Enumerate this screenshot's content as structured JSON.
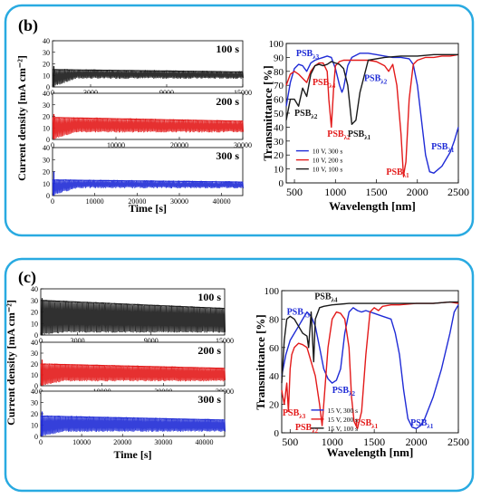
{
  "panels": [
    {
      "label": "(b)",
      "frame_color": "#29aae1",
      "current": {
        "ylabel": "Current density [mA cm⁻²]",
        "xlabel": "Time [s]",
        "ytick_labels": [
          "0",
          "10",
          "20",
          "30",
          "40"
        ],
        "subplots": [
          {
            "tag": "100 s",
            "color": "#1a1a1a",
            "xmax": 15000,
            "xticks": [
              0,
              3000,
              9000,
              15000
            ],
            "xtick_labels": [
              "0",
              "3000",
              "9000",
              "15000"
            ],
            "band": [
              7,
              15
            ],
            "peak": 18
          },
          {
            "tag": "200 s",
            "color": "#e31a1a",
            "xmax": 30000,
            "xticks": [
              0,
              10000,
              20000,
              30000
            ],
            "xtick_labels": [
              "0",
              "10000",
              "20000",
              "30000"
            ],
            "band": [
              6,
              19
            ],
            "peak": 22
          },
          {
            "tag": "300 s",
            "color": "#1f2bd6",
            "xmax": 45000,
            "xticks": [
              0,
              10000,
              20000,
              30000,
              40000
            ],
            "xtick_labels": [
              "0",
              "10000",
              "20000",
              "30000",
              "40000"
            ],
            "band": [
              6,
              13
            ],
            "peak": 20
          }
        ]
      },
      "transmittance": {
        "ylabel": "Transmittance [%]",
        "xlabel": "Wavelength [nm]",
        "xlim": [
          400,
          2500
        ],
        "ylim": [
          0,
          100
        ],
        "xticks": [
          500,
          1000,
          1500,
          2000,
          2500
        ],
        "yticks": [
          0,
          10,
          20,
          30,
          40,
          50,
          60,
          70,
          80,
          90,
          100
        ],
        "legend": [
          {
            "name": "10 V, 300 s",
            "color": "#1f2bd6"
          },
          {
            "name": "10 V, 200 s",
            "color": "#e31a1a"
          },
          {
            "name": "10 V, 100 s",
            "color": "#1a1a1a"
          }
        ],
        "series": [
          {
            "color": "#1f2bd6",
            "x": [
              400,
              450,
              500,
              550,
              600,
              650,
              700,
              750,
              800,
              850,
              900,
              950,
              1000,
              1050,
              1080,
              1100,
              1150,
              1200,
              1300,
              1400,
              1500,
              1600,
              1700,
              1800,
              1900,
              1950,
              2000,
              2050,
              2100,
              2150,
              2200,
              2300,
              2400,
              2450,
              2500
            ],
            "y": [
              55,
              72,
              82,
              85,
              84,
              80,
              86,
              88,
              89,
              90,
              91,
              90,
              82,
              70,
              65,
              68,
              84,
              90,
              93,
              93,
              92,
              91,
              90,
              90,
              89,
              85,
              70,
              45,
              20,
              8,
              7,
              12,
              22,
              30,
              40
            ]
          },
          {
            "color": "#e31a1a",
            "x": [
              400,
              450,
              500,
              550,
              600,
              650,
              700,
              750,
              800,
              850,
              900,
              920,
              950,
              980,
              1000,
              1050,
              1100,
              1200,
              1300,
              1400,
              1500,
              1600,
              1650,
              1700,
              1750,
              1800,
              1830,
              1860,
              1900,
              1950,
              2000,
              2100,
              2200,
              2300,
              2400,
              2500
            ],
            "y": [
              70,
              78,
              80,
              78,
              75,
              72,
              80,
              84,
              86,
              86,
              80,
              60,
              40,
              70,
              84,
              87,
              88,
              88,
              88,
              88,
              87,
              84,
              80,
              85,
              70,
              35,
              5,
              15,
              60,
              85,
              88,
              90,
              90,
              91,
              91,
              92
            ]
          },
          {
            "color": "#1a1a1a",
            "x": [
              400,
              450,
              500,
              550,
              600,
              650,
              700,
              750,
              800,
              850,
              900,
              950,
              1000,
              1050,
              1100,
              1150,
              1200,
              1250,
              1300,
              1400,
              1600,
              1800,
              2000,
              2200,
              2400,
              2500
            ],
            "y": [
              45,
              60,
              60,
              55,
              68,
              62,
              78,
              84,
              85,
              84,
              85,
              87,
              86,
              85,
              82,
              70,
              42,
              45,
              65,
              88,
              90,
              91,
              91,
              92,
              92,
              92
            ]
          }
        ],
        "annotations": [
          {
            "text": "PSB",
            "sub": "λ3",
            "color": "#1f2bd6",
            "x": 520,
            "y": 91
          },
          {
            "text": "PSB",
            "sub": "λ4",
            "color": "#e31a1a",
            "x": 720,
            "y": 70
          },
          {
            "text": "PSB",
            "sub": "λ2",
            "color": "#1a1a1a",
            "x": 500,
            "y": 48
          },
          {
            "text": "PSB",
            "sub": "λ2",
            "color": "#1f2bd6",
            "x": 1350,
            "y": 73
          },
          {
            "text": "PSB",
            "sub": "λ2",
            "color": "#e31a1a",
            "x": 900,
            "y": 33
          },
          {
            "text": "PSB",
            "sub": "λ1",
            "color": "#1a1a1a",
            "x": 1150,
            "y": 33
          },
          {
            "text": "PSB",
            "sub": "λ1",
            "color": "#e31a1a",
            "x": 1620,
            "y": 6
          },
          {
            "text": "PSB",
            "sub": "λ1",
            "color": "#1f2bd6",
            "x": 2170,
            "y": 24
          }
        ]
      }
    },
    {
      "label": "(c)",
      "frame_color": "#29aae1",
      "current": {
        "ylabel": "Current density [mA cm⁻²]",
        "xlabel": "Time [s]",
        "ytick_labels": [
          "0",
          "10",
          "20",
          "30",
          "40"
        ],
        "subplots": [
          {
            "tag": "100 s",
            "color": "#1a1a1a",
            "xmax": 15000,
            "xticks": [
              0,
              3000,
              9000,
              15000
            ],
            "xtick_labels": [
              "0",
              "3000",
              "9000",
              "15000"
            ],
            "band": [
              2,
              30
            ],
            "peak": 32
          },
          {
            "tag": "200 s",
            "color": "#e31a1a",
            "xmax": 30000,
            "xticks": [
              0,
              10000,
              20000,
              30000
            ],
            "xtick_labels": [
              "0",
              "10000",
              "20000",
              "30000"
            ],
            "band": [
              4,
              20
            ],
            "peak": 24
          },
          {
            "tag": "300 s",
            "color": "#1f2bd6",
            "xmax": 45000,
            "xticks": [
              0,
              10000,
              20000,
              30000,
              40000
            ],
            "xtick_labels": [
              "0",
              "10000",
              "20000",
              "30000",
              "40000"
            ],
            "band": [
              4,
              18
            ],
            "peak": 22
          }
        ]
      },
      "transmittance": {
        "ylabel": "Transmittance [%]",
        "xlabel": "Wavelength [nm]",
        "xlim": [
          400,
          2500
        ],
        "ylim": [
          0,
          100
        ],
        "xticks": [
          500,
          1000,
          1500,
          2000,
          2500
        ],
        "yticks": [
          0,
          20,
          40,
          60,
          80,
          100
        ],
        "legend": [
          {
            "name": "15 V, 300 s",
            "color": "#1f2bd6"
          },
          {
            "name": "15 V, 200 s",
            "color": "#e31a1a"
          },
          {
            "name": "15 V, 100 s",
            "color": "#1a1a1a"
          }
        ],
        "series": [
          {
            "color": "#1f2bd6",
            "x": [
              400,
              450,
              500,
              550,
              600,
              650,
              700,
              750,
              800,
              850,
              900,
              950,
              1000,
              1050,
              1100,
              1150,
              1200,
              1250,
              1300,
              1350,
              1400,
              1500,
              1600,
              1700,
              1750,
              1800,
              1850,
              1900,
              1950,
              2000,
              2050,
              2100,
              2200,
              2300,
              2400,
              2450,
              2500
            ],
            "y": [
              40,
              55,
              65,
              70,
              75,
              80,
              85,
              82,
              75,
              60,
              45,
              38,
              35,
              37,
              45,
              70,
              85,
              88,
              86,
              85,
              86,
              84,
              82,
              80,
              70,
              55,
              30,
              10,
              4,
              3,
              5,
              10,
              25,
              45,
              70,
              85,
              90
            ]
          },
          {
            "color": "#e31a1a",
            "x": [
              400,
              430,
              460,
              480,
              500,
              520,
              550,
              600,
              650,
              700,
              750,
              800,
              850,
              880,
              900,
              950,
              1000,
              1050,
              1100,
              1150,
              1200,
              1230,
              1260,
              1300,
              1350,
              1400,
              1450,
              1500,
              1550,
              1600,
              1700,
              1800,
              2000,
              2200,
              2400,
              2500
            ],
            "y": [
              30,
              20,
              35,
              15,
              45,
              55,
              60,
              63,
              62,
              60,
              50,
              40,
              20,
              5,
              20,
              60,
              80,
              85,
              84,
              80,
              60,
              25,
              8,
              3,
              15,
              55,
              85,
              88,
              86,
              89,
              90,
              90,
              91,
              91,
              92,
              91
            ]
          },
          {
            "color": "#1a1a1a",
            "x": [
              400,
              430,
              460,
              500,
              550,
              600,
              650,
              700,
              720,
              750,
              780,
              800,
              850,
              900,
              1000,
              1200,
              1400,
              1600,
              1800,
              2000,
              2200,
              2400,
              2500
            ],
            "y": [
              35,
              65,
              80,
              82,
              80,
              75,
              70,
              68,
              60,
              85,
              50,
              80,
              88,
              89,
              90,
              91,
              91,
              91,
              91,
              91,
              91,
              92,
              92
            ]
          }
        ],
        "annotations": [
          {
            "text": "PSB",
            "sub": "λ3",
            "color": "#1f2bd6",
            "x": 460,
            "y": 83
          },
          {
            "text": "PSB",
            "sub": "λ4",
            "color": "#1a1a1a",
            "x": 790,
            "y": 94
          },
          {
            "text": "PSB",
            "sub": "λ2",
            "color": "#1f2bd6",
            "x": 1000,
            "y": 28
          },
          {
            "text": "PSB",
            "sub": "λ3",
            "color": "#e31a1a",
            "x": 410,
            "y": 12
          },
          {
            "text": "PSB",
            "sub": "λ2",
            "color": "#e31a1a",
            "x": 560,
            "y": 2
          },
          {
            "text": "PSB",
            "sub": "λ1",
            "color": "#e31a1a",
            "x": 1270,
            "y": 5
          },
          {
            "text": "PSB",
            "sub": "λ1",
            "color": "#1f2bd6",
            "x": 1930,
            "y": 5
          }
        ]
      }
    }
  ]
}
